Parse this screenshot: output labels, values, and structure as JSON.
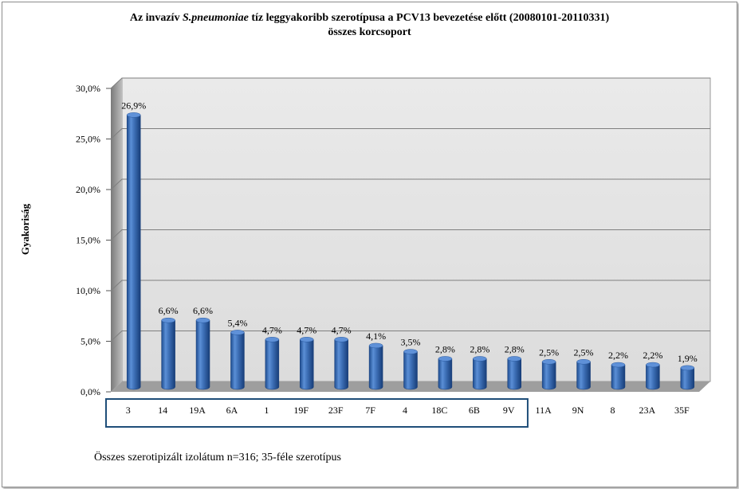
{
  "chart_data": {
    "type": "bar",
    "title_prefix": "Az invazív ",
    "title_italic": "S.pneumoniae",
    "title_suffix": " tíz leggyakoribb szerotípusa a PCV13 bevezetése előtt (20080101-20110331)",
    "subtitle": "összes korcsoport",
    "ylabel": "Gyakoriság",
    "xlabel": "",
    "ylim": [
      0,
      30
    ],
    "yticks": [
      "0,0%",
      "5,0%",
      "10,0%",
      "15,0%",
      "20,0%",
      "25,0%",
      "30,0%"
    ],
    "categories": [
      "3",
      "14",
      "19A",
      "6A",
      "1",
      "19F",
      "23F",
      "7F",
      "4",
      "18C",
      "6B",
      "9V",
      "11A",
      "9N",
      "8",
      "23A",
      "35F"
    ],
    "values": [
      26.9,
      6.6,
      6.6,
      5.4,
      4.7,
      4.7,
      4.7,
      4.1,
      3.5,
      2.8,
      2.8,
      2.8,
      2.5,
      2.5,
      2.2,
      2.2,
      1.9
    ],
    "data_labels": [
      "26,9%",
      "6,6%",
      "6,6%",
      "5,4%",
      "4,7%",
      "4,7%",
      "4,7%",
      "4,1%",
      "3,5%",
      "2,8%",
      "2,8%",
      "2,8%",
      "2,5%",
      "2,5%",
      "2,2%",
      "2,2%",
      "1,9%"
    ],
    "highlighted_categories": [
      "3",
      "14",
      "19A",
      "6A",
      "1",
      "19F",
      "23F",
      "7F",
      "4",
      "18C",
      "6B",
      "9V"
    ],
    "grid": true,
    "bar_color": "#3d6fb6",
    "highlight_box_color": "#1f4e79"
  },
  "footnote": "Összes szerotipizált izolátum n=316; 35-féle szerotípus"
}
